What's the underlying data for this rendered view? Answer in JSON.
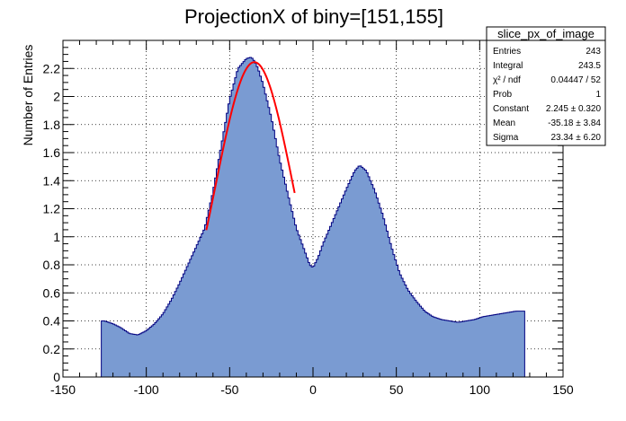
{
  "chart_data": {
    "type": "area",
    "title": "ProjectionX of biny=[151,155]",
    "xlabel": "",
    "ylabel": "Number of Entries",
    "xlim": [
      -150,
      150
    ],
    "ylim": [
      0,
      2.4
    ],
    "x_ticks": [
      -150,
      -100,
      -50,
      0,
      50,
      100,
      150
    ],
    "y_ticks": [
      0,
      0.2,
      0.4,
      0.6,
      0.8,
      1,
      1.2,
      1.4,
      1.6,
      1.8,
      2,
      2.2
    ],
    "x_tick_labels": [
      "-150",
      "-100",
      "-50",
      "0",
      "50",
      "100",
      "150"
    ],
    "y_tick_labels": [
      "0",
      "0.2",
      "0.4",
      "0.6",
      "0.8",
      "1",
      "1.2",
      "1.4",
      "1.6",
      "1.8",
      "2",
      "2.2"
    ],
    "grid": true,
    "fill_color": "#7a9bd2",
    "line_color": "#000080",
    "fit_color": "#ff0000",
    "histogram": {
      "x": [
        -127,
        -125,
        -120,
        -115,
        -110,
        -105,
        -100,
        -95,
        -90,
        -85,
        -80,
        -75,
        -70,
        -65,
        -60,
        -55,
        -50,
        -45,
        -40,
        -37,
        -35,
        -33,
        -30,
        -25,
        -20,
        -15,
        -10,
        -5,
        -2,
        0,
        3,
        6,
        10,
        15,
        20,
        25,
        28,
        32,
        37,
        42,
        47,
        52,
        57,
        62,
        67,
        72,
        77,
        82,
        87,
        92,
        97,
        102,
        107,
        112,
        117,
        122,
        127
      ],
      "y": [
        0.4,
        0.4,
        0.38,
        0.35,
        0.31,
        0.3,
        0.33,
        0.38,
        0.45,
        0.55,
        0.67,
        0.8,
        0.93,
        1.06,
        1.32,
        1.65,
        1.98,
        2.2,
        2.27,
        2.28,
        2.25,
        2.2,
        2.09,
        1.85,
        1.55,
        1.3,
        1.06,
        0.9,
        0.8,
        0.78,
        0.85,
        0.95,
        1.06,
        1.2,
        1.34,
        1.47,
        1.51,
        1.47,
        1.33,
        1.15,
        0.93,
        0.74,
        0.62,
        0.54,
        0.47,
        0.43,
        0.41,
        0.4,
        0.39,
        0.4,
        0.41,
        0.43,
        0.44,
        0.45,
        0.46,
        0.47,
        0.47
      ]
    },
    "fit": {
      "constant": 2.245,
      "mean": -35.18,
      "sigma": 23.34,
      "range": [
        -64,
        -11
      ]
    },
    "stats_box": {
      "title": "slice_px_of_image",
      "rows": [
        {
          "label": "Entries",
          "value": "243"
        },
        {
          "label": "Integral",
          "value": "243.5"
        },
        {
          "label": "χ² / ndf",
          "value": "0.04447 / 52"
        },
        {
          "label": "Prob",
          "value": "1"
        },
        {
          "label": "Constant",
          "value": "2.245 ± 0.320"
        },
        {
          "label": "Mean",
          "value": "-35.18 ± 3.84"
        },
        {
          "label": "Sigma",
          "value": "23.34 ± 6.20"
        }
      ]
    }
  }
}
